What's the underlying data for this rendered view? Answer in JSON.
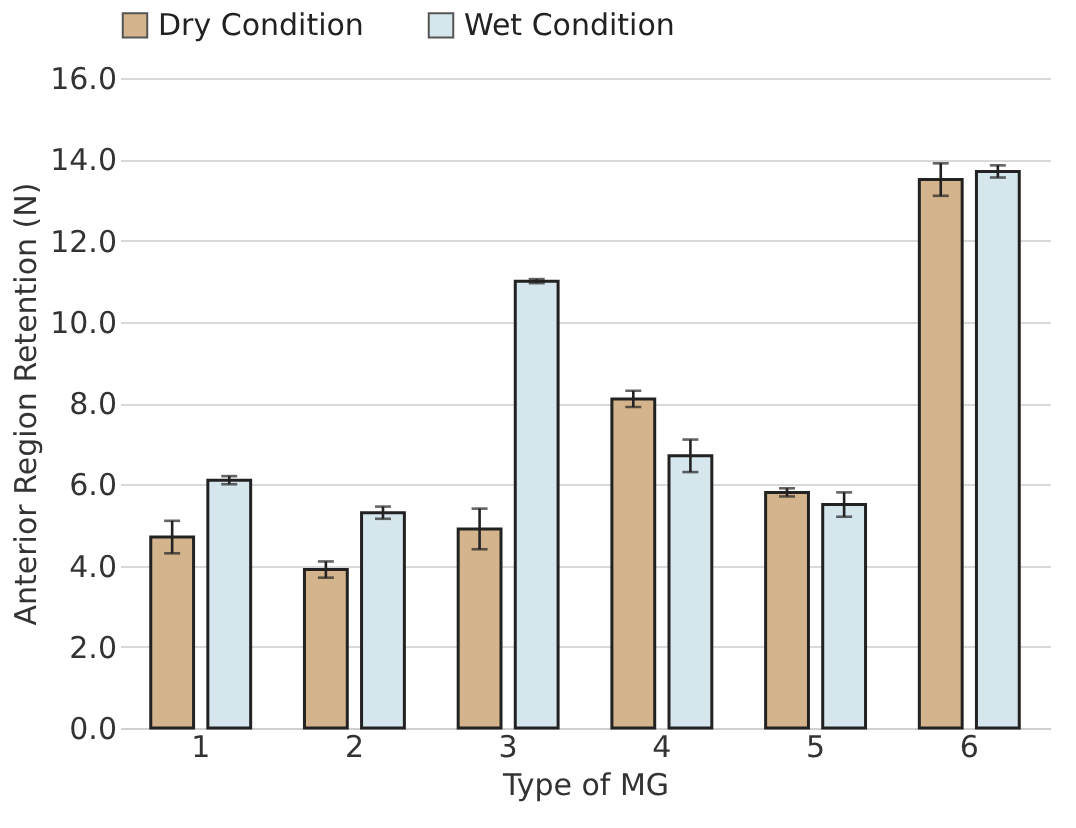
{
  "chart_data": {
    "type": "bar",
    "xlabel": "Type of MG",
    "ylabel": "Anterior Region Retention (N)",
    "categories": [
      "1",
      "2",
      "3",
      "4",
      "5",
      "6"
    ],
    "series": [
      {
        "name": "Dry Condition",
        "color": "#d4b48c",
        "values": [
          4.7,
          3.9,
          4.9,
          8.1,
          5.8,
          13.5
        ],
        "errors": [
          0.4,
          0.2,
          0.5,
          0.2,
          0.1,
          0.4
        ]
      },
      {
        "name": "Wet Condition",
        "color": "#d5e6ec",
        "values": [
          6.1,
          5.3,
          11.0,
          6.7,
          5.5,
          13.7
        ],
        "errors": [
          0.1,
          0.15,
          0.05,
          0.4,
          0.3,
          0.15
        ]
      }
    ],
    "ylim": [
      0,
      16
    ],
    "yticks": [
      {
        "value": 0,
        "label": "0.0"
      },
      {
        "value": 2,
        "label": "2.0"
      },
      {
        "value": 4,
        "label": "4.0"
      },
      {
        "value": 6,
        "label": "6.0"
      },
      {
        "value": 8,
        "label": "8.0"
      },
      {
        "value": 10,
        "label": "10.0"
      },
      {
        "value": 12,
        "label": "12.0"
      },
      {
        "value": 14,
        "label": "14.0"
      },
      {
        "value": 16,
        "label": "16.0"
      }
    ],
    "grid": "y",
    "legend": "top"
  }
}
